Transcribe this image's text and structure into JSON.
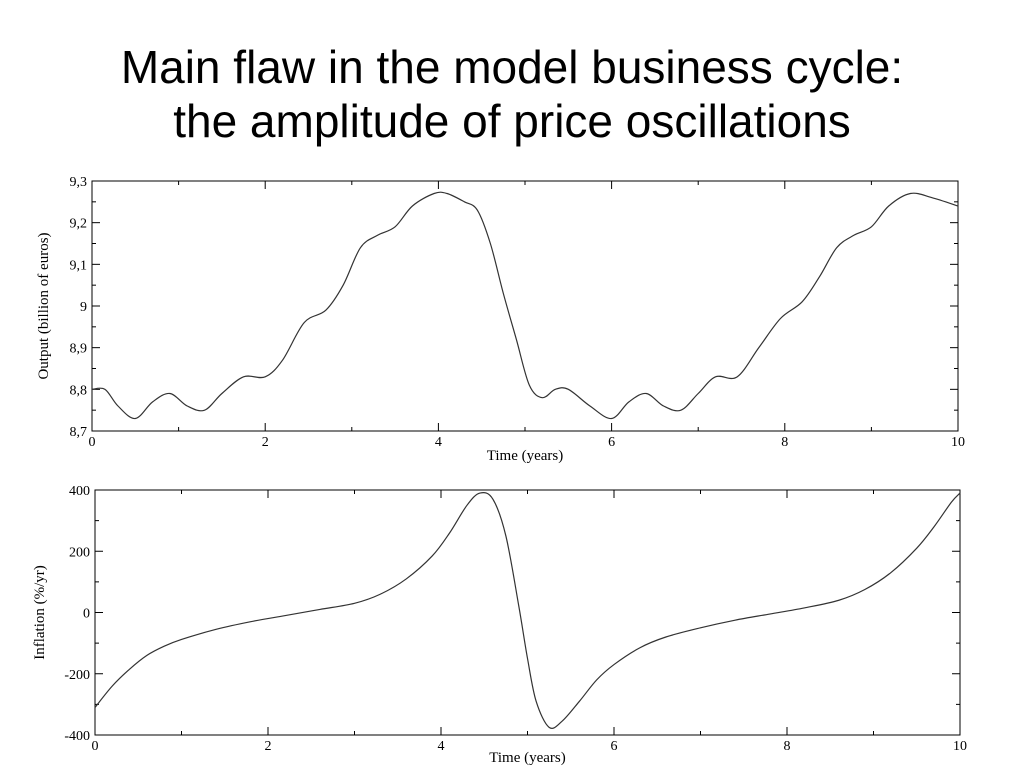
{
  "slide": {
    "title_line1": "Main flaw in the model business cycle:",
    "title_line2": "the amplitude of price oscillations"
  },
  "chart_data": [
    {
      "type": "line",
      "xlabel": "Time (years)",
      "ylabel": "Output (billion of euros)",
      "xlim": [
        0,
        10
      ],
      "ylim": [
        8.7,
        9.3
      ],
      "xticks": [
        0,
        2,
        4,
        6,
        8,
        10
      ],
      "xtick_labels": [
        "0",
        "2",
        "4",
        "6",
        "8",
        "10"
      ],
      "yticks": [
        8.7,
        8.8,
        8.9,
        9.0,
        9.1,
        9.2,
        9.3
      ],
      "ytick_labels": [
        "8,7",
        "8,8",
        "8,9",
        "9",
        "9,1",
        "9,2",
        "9,3"
      ],
      "grid": false,
      "line_color": "#333333",
      "series": [
        {
          "x": [
            0,
            0.15,
            0.3,
            0.5,
            0.7,
            0.9,
            1.1,
            1.3,
            1.5,
            1.75,
            2.0,
            2.2,
            2.45,
            2.7,
            2.9,
            3.1,
            3.3,
            3.5,
            3.7,
            3.95,
            4.1,
            4.3,
            4.45,
            4.6,
            4.75,
            4.9,
            5.05,
            5.2,
            5.35,
            5.5,
            5.75,
            6.0,
            6.2,
            6.4,
            6.6,
            6.8,
            7.0,
            7.2,
            7.45,
            7.7,
            7.95,
            8.2,
            8.4,
            8.6,
            8.8,
            9.0,
            9.2,
            9.45,
            9.7,
            10.0
          ],
          "y": [
            8.8,
            8.8,
            8.76,
            8.73,
            8.77,
            8.79,
            8.76,
            8.75,
            8.79,
            8.83,
            8.83,
            8.87,
            8.96,
            8.99,
            9.05,
            9.14,
            9.17,
            9.19,
            9.24,
            9.27,
            9.27,
            9.25,
            9.23,
            9.15,
            9.03,
            8.92,
            8.81,
            8.78,
            8.8,
            8.8,
            8.76,
            8.73,
            8.77,
            8.79,
            8.76,
            8.75,
            8.79,
            8.83,
            8.83,
            8.9,
            8.97,
            9.01,
            9.07,
            9.14,
            9.17,
            9.19,
            9.24,
            9.27,
            9.26,
            9.24
          ]
        }
      ]
    },
    {
      "type": "line",
      "xlabel": "Time (years)",
      "ylabel": "Inflation (%/yr)",
      "xlim": [
        0,
        10
      ],
      "ylim": [
        -400,
        400
      ],
      "xticks": [
        0,
        2,
        4,
        6,
        8,
        10
      ],
      "xtick_labels": [
        "0",
        "2",
        "4",
        "6",
        "8",
        "10"
      ],
      "yticks": [
        -400,
        -200,
        0,
        200,
        400
      ],
      "ytick_labels": [
        "-400",
        "-200",
        "0",
        "200",
        "400"
      ],
      "grid": false,
      "line_color": "#333333",
      "series": [
        {
          "x": [
            0,
            0.2,
            0.4,
            0.6,
            0.8,
            1.0,
            1.4,
            1.8,
            2.2,
            2.6,
            3.0,
            3.3,
            3.6,
            3.9,
            4.1,
            4.3,
            4.45,
            4.6,
            4.75,
            4.9,
            5.0,
            5.1,
            5.25,
            5.4,
            5.6,
            5.8,
            6.0,
            6.3,
            6.6,
            7.0,
            7.4,
            7.8,
            8.2,
            8.6,
            8.9,
            9.2,
            9.5,
            9.7,
            9.9,
            10.0
          ],
          "y": [
            -310,
            -240,
            -185,
            -140,
            -110,
            -88,
            -55,
            -30,
            -10,
            10,
            30,
            60,
            110,
            185,
            260,
            350,
            390,
            370,
            250,
            20,
            -150,
            -290,
            -375,
            -355,
            -290,
            -220,
            -170,
            -115,
            -80,
            -50,
            -25,
            -5,
            15,
            40,
            75,
            130,
            210,
            280,
            360,
            390
          ]
        }
      ]
    }
  ]
}
